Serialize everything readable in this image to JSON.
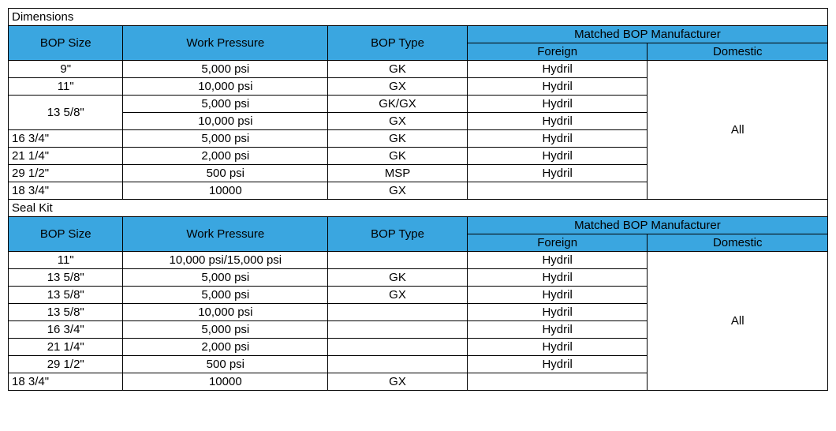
{
  "colors": {
    "header_bg": "#3aa6e0",
    "border": "#000000",
    "text": "#000000",
    "bg": "#ffffff"
  },
  "sections": {
    "dimensions": {
      "title": "Dimensions",
      "headers": {
        "bop_size": "BOP Size",
        "work_pressure": "Work Pressure",
        "bop_type": "BOP Type",
        "matched_mfr": "Matched BOP Manufacturer",
        "foreign": "Foreign",
        "domestic": "Domestic"
      },
      "rows": [
        {
          "size": "9\"",
          "pressure": "5,000 psi",
          "type": "GK",
          "foreign": "Hydril",
          "size_align": "center"
        },
        {
          "size": "11\"",
          "pressure": "10,000 psi",
          "type": "GX",
          "foreign": "Hydril",
          "size_align": "center"
        },
        {
          "size": "13 5/8\"",
          "pressure": "5,000 psi",
          "type": "GK/GX",
          "foreign": "Hydril",
          "size_align": "center",
          "rowspan_size": 2
        },
        {
          "size": null,
          "pressure": "10,000 psi",
          "type": "GX",
          "foreign": "Hydril"
        },
        {
          "size": "16 3/4\"",
          "pressure": "5,000 psi",
          "type": "GK",
          "foreign": "Hydril",
          "size_align": "left"
        },
        {
          "size": "21 1/4\"",
          "pressure": "2,000 psi",
          "type": "GK",
          "foreign": "Hydril",
          "size_align": "left"
        },
        {
          "size": "29 1/2\"",
          "pressure": "500 psi",
          "type": "MSP",
          "foreign": "Hydril",
          "size_align": "left"
        },
        {
          "size": "18 3/4\"",
          "pressure": "10000",
          "type": "GX",
          "foreign": "",
          "size_align": "left"
        }
      ],
      "domestic_merged": "All"
    },
    "sealkit": {
      "title": "Seal Kit",
      "headers": {
        "bop_size": "BOP Size",
        "work_pressure": "Work Pressure",
        "bop_type": "BOP Type",
        "matched_mfr": "Matched BOP Manufacturer",
        "foreign": "Foreign",
        "domestic": "Domestic"
      },
      "rows": [
        {
          "size": "11\"",
          "pressure": "10,000 psi/15,000 psi",
          "type": "",
          "foreign": "Hydril",
          "size_align": "center"
        },
        {
          "size": "13 5/8\"",
          "pressure": "5,000 psi",
          "type": "GK",
          "foreign": "Hydril",
          "size_align": "center"
        },
        {
          "size": "13 5/8\"",
          "pressure": "5,000 psi",
          "type": "GX",
          "foreign": "Hydril",
          "size_align": "center"
        },
        {
          "size": "13 5/8\"",
          "pressure": "10,000 psi",
          "type": "",
          "foreign": "Hydril",
          "size_align": "center"
        },
        {
          "size": "16 3/4\"",
          "pressure": "5,000 psi",
          "type": "",
          "foreign": "Hydril",
          "size_align": "center"
        },
        {
          "size": "21 1/4\"",
          "pressure": "2,000 psi",
          "type": "",
          "foreign": "Hydril",
          "size_align": "center"
        },
        {
          "size": "29 1/2\"",
          "pressure": "500 psi",
          "type": "",
          "foreign": "Hydril",
          "size_align": "center"
        },
        {
          "size": "18 3/4\"",
          "pressure": "10000",
          "type": "GX",
          "foreign": "",
          "size_align": "left"
        }
      ],
      "domestic_merged": "All"
    }
  }
}
